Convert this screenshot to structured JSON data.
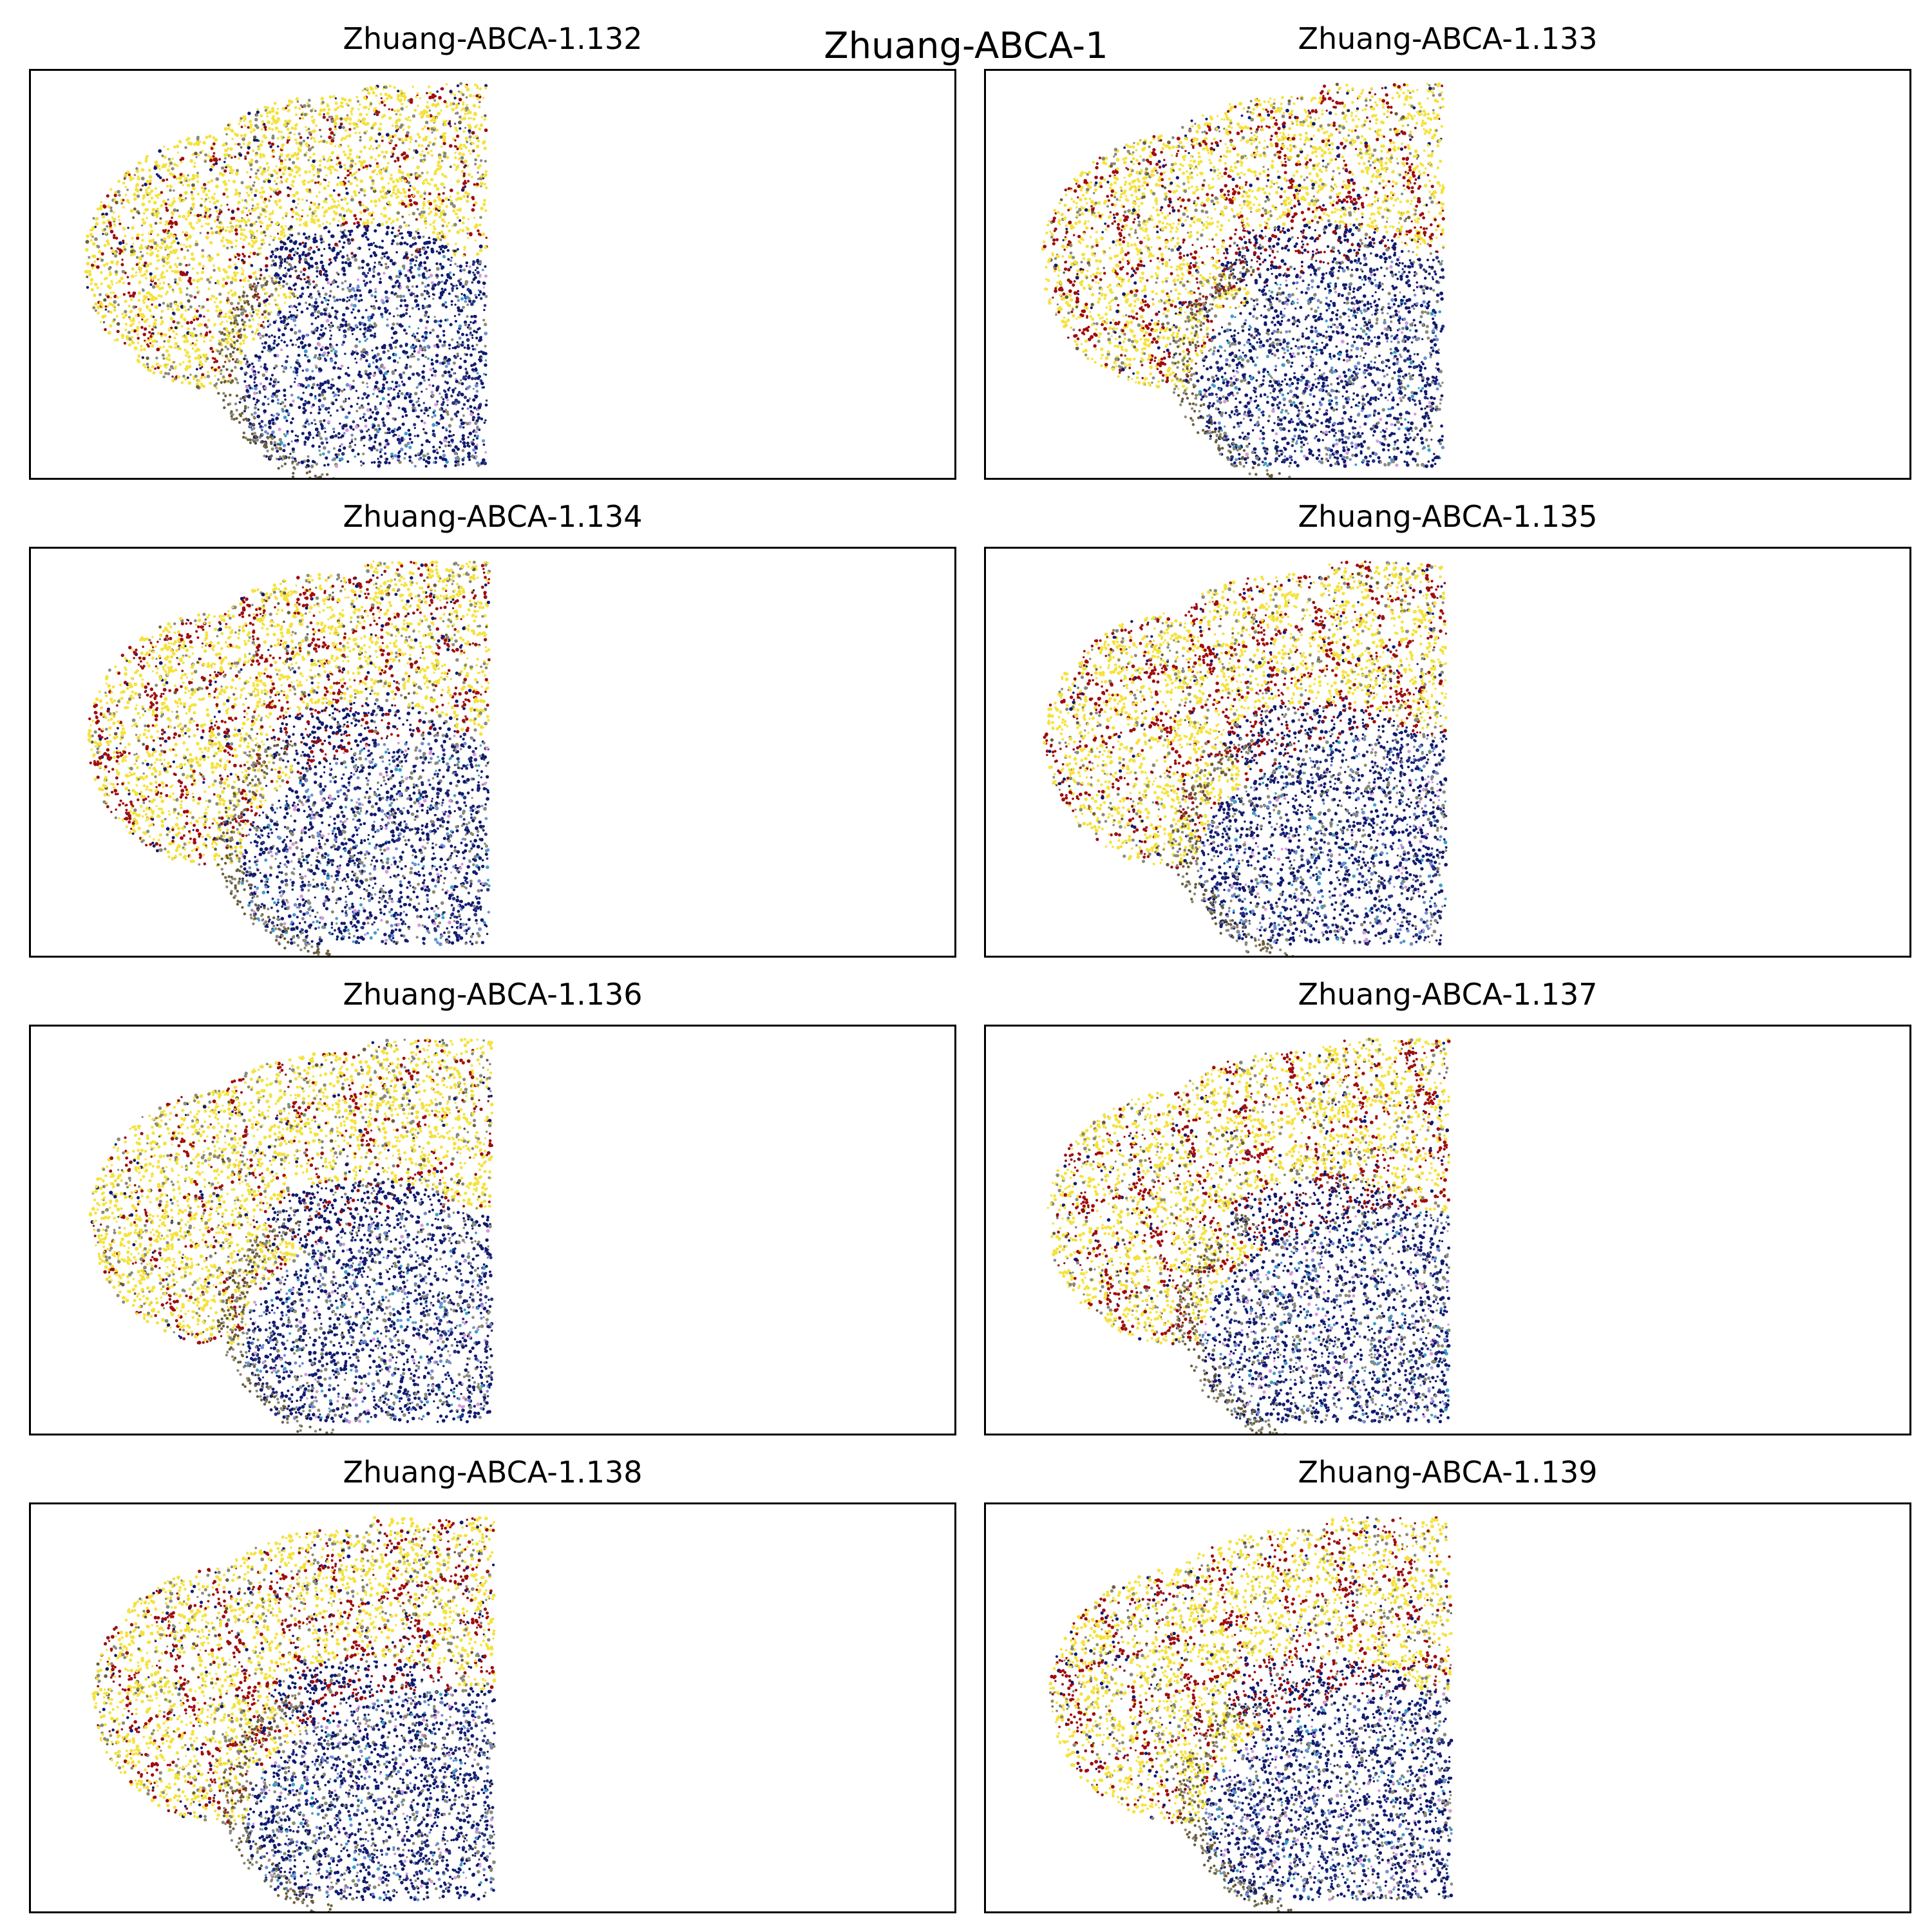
{
  "figure": {
    "title": "Zhuang-ABCA-1",
    "colors": {
      "granular_yellow": "#f5e23c",
      "molecular_gray": "#8a8a7a",
      "purkinje_red": "#a00d0d",
      "white_matter_navy": "#101a6e",
      "nucleus_navy": "#2a3380",
      "pale_blue": "#6f8fcf",
      "cyan": "#3aa0c8",
      "pink": "#d79ad8",
      "teal": "#3fbf9f",
      "olive_brown": "#6b5d3a"
    }
  },
  "chart_data": [
    {
      "type": "scatter",
      "title": "Zhuang-ABCA-1.132",
      "section": 132,
      "red_layer": "sparse",
      "xticks": [],
      "yticks": []
    },
    {
      "type": "scatter",
      "title": "Zhuang-ABCA-1.133",
      "section": 133,
      "red_layer": "dense",
      "xticks": [],
      "yticks": []
    },
    {
      "type": "scatter",
      "title": "Zhuang-ABCA-1.134",
      "section": 134,
      "red_layer": "dense",
      "xticks": [],
      "yticks": []
    },
    {
      "type": "scatter",
      "title": "Zhuang-ABCA-1.135",
      "section": 135,
      "red_layer": "dense",
      "xticks": [],
      "yticks": []
    },
    {
      "type": "scatter",
      "title": "Zhuang-ABCA-1.136",
      "section": 136,
      "red_layer": "sparse",
      "xticks": [],
      "yticks": []
    },
    {
      "type": "scatter",
      "title": "Zhuang-ABCA-1.137",
      "section": 137,
      "red_layer": "dense",
      "xticks": [],
      "yticks": []
    },
    {
      "type": "scatter",
      "title": "Zhuang-ABCA-1.138",
      "section": 138,
      "red_layer": "dense",
      "xticks": [],
      "yticks": []
    },
    {
      "type": "scatter",
      "title": "Zhuang-ABCA-1.139",
      "section": 139,
      "red_layer": "dense",
      "xticks": [],
      "yticks": []
    }
  ]
}
